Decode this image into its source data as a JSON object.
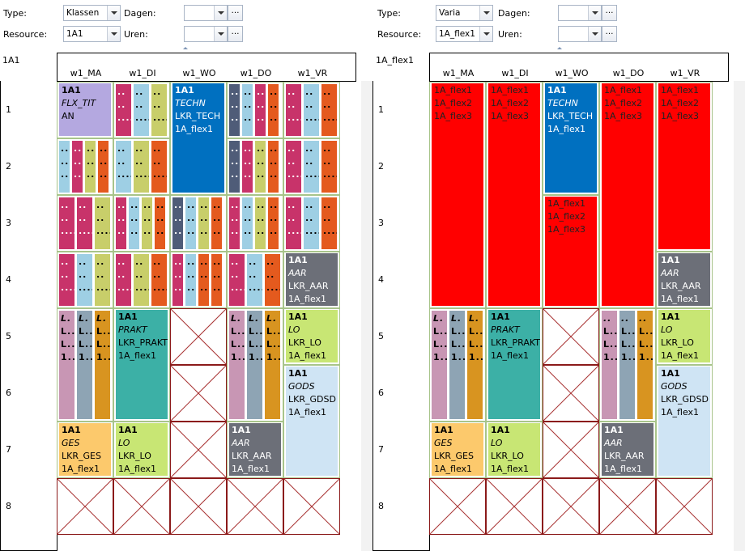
{
  "ui": {
    "dropdown_icon": "chevron-down-icon",
    "ellipsis": "…"
  },
  "panels": [
    {
      "filters": {
        "type_label": "Type:",
        "type_value": "Klassen",
        "dagen_label": "Dagen:",
        "dagen_value": "",
        "resource_label": "Resource:",
        "resource_value": "1A1",
        "uren_label": "Uren:",
        "uren_value": ""
      },
      "resource_title": "1A1",
      "days": [
        "w1_MA",
        "w1_DI",
        "w1_WO",
        "w1_DO",
        "w1_VR"
      ],
      "hours": [
        "1",
        "2",
        "3",
        "4",
        "5",
        "6",
        "7",
        "8"
      ],
      "lessons": [
        {
          "day": 0,
          "start": 0,
          "span": 1,
          "color": "#b4a8e0",
          "lines": [
            "1A1",
            "FLX_TIT",
            "AN"
          ],
          "italic_lines": [
            1
          ]
        },
        {
          "day": 2,
          "start": 0,
          "span": 2,
          "color": "#0070c0",
          "lines": [
            "1A1",
            "TECHN",
            "LKR_TECH",
            "1A_flex1"
          ],
          "italic_lines": [
            1
          ]
        },
        {
          "day": 4,
          "start": 3,
          "span": 1,
          "color": "#6c6f78",
          "lines": [
            "1A1",
            "AAR",
            "LKR_AAR",
            "1A_flex1"
          ],
          "italic_lines": [
            1
          ]
        },
        {
          "day": 1,
          "start": 4,
          "span": 2,
          "color": "#3cb0a6",
          "lines": [
            "1A1",
            "PRAKT",
            "LKR_PRAKT",
            "1A_flex1"
          ],
          "italic_lines": [
            1
          ]
        },
        {
          "day": 4,
          "start": 4,
          "span": 1,
          "color": "#c8e674",
          "lines": [
            "1A1",
            "LO",
            "LKR_LO",
            "1A_flex1"
          ],
          "italic_lines": [
            1
          ]
        },
        {
          "day": 4,
          "start": 5,
          "span": 2,
          "color": "#cfe4f4",
          "lines": [
            "1A1",
            "GODS",
            "LKR_GDSD",
            "1A_flex1"
          ],
          "italic_lines": [
            1
          ]
        },
        {
          "day": 0,
          "start": 6,
          "span": 1,
          "color": "#fcc96c",
          "lines": [
            "1A1",
            "GES",
            "LKR_GES",
            "1A_flex1"
          ],
          "italic_lines": [
            1
          ]
        },
        {
          "day": 1,
          "start": 6,
          "span": 1,
          "color": "#c8e674",
          "lines": [
            "1A1",
            "LO",
            "LKR_LO",
            "1A_flex1"
          ],
          "italic_lines": [
            1
          ]
        },
        {
          "day": 3,
          "start": 6,
          "span": 1,
          "color": "#6c6f78",
          "lines": [
            "1A1",
            "AAR",
            "LKR_AAR",
            "1A_flex1"
          ],
          "italic_lines": [
            1
          ]
        }
      ],
      "narrow_groups": [
        {
          "day": 1,
          "start": 0,
          "span": 1,
          "colors": [
            "#c8336a",
            "#9ecfe4",
            "#c8ce6a"
          ]
        },
        {
          "day": 3,
          "start": 0,
          "span": 1,
          "colors": [
            "#4f5c78",
            "#9ecfe4",
            "#c8336a",
            "#e45a1e"
          ]
        },
        {
          "day": 4,
          "start": 0,
          "span": 1,
          "colors": [
            "#c8336a",
            "#9ecfe4",
            "#e45a1e"
          ]
        },
        {
          "day": 0,
          "start": 1,
          "span": 1,
          "colors": [
            "#9ecfe4",
            "#c8336a",
            "#c8ce6a",
            "#e45a1e"
          ]
        },
        {
          "day": 1,
          "start": 1,
          "span": 1,
          "colors": [
            "#9ecfe4",
            "#c8ce6a",
            "#e45a1e"
          ]
        },
        {
          "day": 3,
          "start": 1,
          "span": 1,
          "colors": [
            "#4f5c78",
            "#c8336a",
            "#c8ce6a",
            "#e45a1e"
          ]
        },
        {
          "day": 4,
          "start": 1,
          "span": 1,
          "colors": [
            "#c8336a",
            "#9ecfe4",
            "#e45a1e"
          ]
        },
        {
          "day": 0,
          "start": 2,
          "span": 1,
          "colors": [
            "#c8336a",
            "#c8336a",
            "#c8ce6a"
          ]
        },
        {
          "day": 1,
          "start": 2,
          "span": 1,
          "colors": [
            "#c8336a",
            "#9ecfe4",
            "#c8ce6a",
            "#e45a1e"
          ]
        },
        {
          "day": 2,
          "start": 2,
          "span": 1,
          "colors": [
            "#4f5c78",
            "#9ecfe4",
            "#c8ce6a",
            "#e45a1e"
          ]
        },
        {
          "day": 3,
          "start": 2,
          "span": 1,
          "colors": [
            "#c8336a",
            "#9ecfe4",
            "#c8ce6a",
            "#e45a1e"
          ]
        },
        {
          "day": 4,
          "start": 2,
          "span": 1,
          "colors": [
            "#c8336a",
            "#9ecfe4",
            "#e45a1e"
          ]
        },
        {
          "day": 0,
          "start": 3,
          "span": 1,
          "colors": [
            "#c8336a",
            "#9ecfe4",
            "#c8ce6a"
          ]
        },
        {
          "day": 1,
          "start": 3,
          "span": 1,
          "colors": [
            "#c8336a",
            "#c8ce6a",
            "#e45a1e"
          ]
        },
        {
          "day": 2,
          "start": 3,
          "span": 1,
          "colors": [
            "#c8336a",
            "#9ecfe4",
            "#e45a1e",
            "#e45a1e"
          ]
        },
        {
          "day": 3,
          "start": 3,
          "span": 1,
          "colors": [
            "#c8336a",
            "#9ecfe4",
            "#e45a1e"
          ]
        },
        {
          "day": 0,
          "start": 4,
          "span": 2,
          "colors": [
            "#c896b4",
            "#8ea4b4",
            "#d89420"
          ],
          "text": [
            "L.",
            "L..",
            "L..",
            "1.."
          ]
        },
        {
          "day": 3,
          "start": 4,
          "span": 2,
          "colors": [
            "#c896b4",
            "#8ea4b4",
            "#d89420"
          ],
          "text": [
            "L.",
            "L..",
            "L..",
            "1.."
          ]
        }
      ],
      "empty_cells": [
        {
          "day": 2,
          "start": 4,
          "span": 1
        },
        {
          "day": 2,
          "start": 5,
          "span": 1
        },
        {
          "day": 2,
          "start": 6,
          "span": 1
        },
        {
          "day": 0,
          "start": 7,
          "span": 1
        },
        {
          "day": 1,
          "start": 7,
          "span": 1
        },
        {
          "day": 2,
          "start": 7,
          "span": 1
        },
        {
          "day": 3,
          "start": 7,
          "span": 1
        },
        {
          "day": 4,
          "start": 7,
          "span": 1
        }
      ]
    },
    {
      "filters": {
        "type_label": "Type:",
        "type_value": "Varia",
        "dagen_label": "Dagen:",
        "dagen_value": "",
        "resource_label": "Resource:",
        "resource_value": "1A_flex1",
        "uren_label": "Uren:",
        "uren_value": ""
      },
      "resource_title": "1A_flex1",
      "days": [
        "w1_MA",
        "w1_DI",
        "w1_WO",
        "w1_DO",
        "w1_VR"
      ],
      "hours": [
        "1",
        "2",
        "3",
        "4",
        "5",
        "6",
        "7",
        "8"
      ],
      "lessons": [
        {
          "day": 0,
          "start": 0,
          "span": 4,
          "color": "#ff0000",
          "lines": [
            "1A_flex1",
            "1A_flex2",
            "1A_flex3"
          ],
          "italic_lines": []
        },
        {
          "day": 1,
          "start": 0,
          "span": 4,
          "color": "#ff0000",
          "lines": [
            "1A_flex1",
            "1A_flex2",
            "1A_flex3"
          ],
          "italic_lines": []
        },
        {
          "day": 2,
          "start": 0,
          "span": 2,
          "color": "#0070c0",
          "lines": [
            "1A1",
            "TECHN",
            "LKR_TECH",
            "1A_flex1"
          ],
          "italic_lines": [
            1
          ]
        },
        {
          "day": 2,
          "start": 2,
          "span": 2,
          "color": "#ff0000",
          "lines": [
            "1A_flex1",
            "1A_flex2",
            "1A_flex3"
          ],
          "italic_lines": []
        },
        {
          "day": 3,
          "start": 0,
          "span": 4,
          "color": "#ff0000",
          "lines": [
            "1A_flex1",
            "1A_flex2",
            "1A_flex3"
          ],
          "italic_lines": []
        },
        {
          "day": 4,
          "start": 0,
          "span": 3,
          "color": "#ff0000",
          "lines": [
            "1A_flex1",
            "1A_flex2",
            "1A_flex3"
          ],
          "italic_lines": []
        },
        {
          "day": 4,
          "start": 3,
          "span": 1,
          "color": "#6c6f78",
          "lines": [
            "1A1",
            "AAR",
            "LKR_AAR",
            "1A_flex1"
          ],
          "italic_lines": [
            1
          ]
        },
        {
          "day": 1,
          "start": 4,
          "span": 2,
          "color": "#3cb0a6",
          "lines": [
            "1A1",
            "PRAKT",
            "LKR_PRAKT",
            "1A_flex1"
          ],
          "italic_lines": [
            1
          ]
        },
        {
          "day": 4,
          "start": 4,
          "span": 1,
          "color": "#c8e674",
          "lines": [
            "1A1",
            "LO",
            "LKR_LO",
            "1A_flex1"
          ],
          "italic_lines": [
            1
          ]
        },
        {
          "day": 4,
          "start": 5,
          "span": 2,
          "color": "#cfe4f4",
          "lines": [
            "1A1",
            "GODS",
            "LKR_GDSD",
            "1A_flex1"
          ],
          "italic_lines": [
            1
          ]
        },
        {
          "day": 0,
          "start": 6,
          "span": 1,
          "color": "#fcc96c",
          "lines": [
            "1A1",
            "GES",
            "LKR_GES",
            "1A_flex1"
          ],
          "italic_lines": [
            1
          ]
        },
        {
          "day": 1,
          "start": 6,
          "span": 1,
          "color": "#c8e674",
          "lines": [
            "1A1",
            "LO",
            "LKR_LO",
            "1A_flex1"
          ],
          "italic_lines": [
            1
          ]
        },
        {
          "day": 3,
          "start": 6,
          "span": 1,
          "color": "#6c6f78",
          "lines": [
            "1A1",
            "AAR",
            "LKR_AAR",
            "1A_flex1"
          ],
          "italic_lines": [
            1
          ]
        }
      ],
      "narrow_groups": [
        {
          "day": 0,
          "start": 4,
          "span": 2,
          "colors": [
            "#c896b4",
            "#8ea4b4",
            "#d89420"
          ],
          "text": [
            "L.",
            "L..",
            "L..",
            "1.."
          ]
        },
        {
          "day": 3,
          "start": 4,
          "span": 2,
          "colors": [
            "#c896b4",
            "#8ea4b4",
            "#d89420"
          ],
          "text": [
            "..",
            "L..",
            "L..",
            "1.."
          ]
        }
      ],
      "empty_cells": [
        {
          "day": 2,
          "start": 4,
          "span": 1
        },
        {
          "day": 2,
          "start": 5,
          "span": 1
        },
        {
          "day": 2,
          "start": 6,
          "span": 1
        },
        {
          "day": 0,
          "start": 7,
          "span": 1
        },
        {
          "day": 1,
          "start": 7,
          "span": 1
        },
        {
          "day": 2,
          "start": 7,
          "span": 1
        },
        {
          "day": 3,
          "start": 7,
          "span": 1
        },
        {
          "day": 4,
          "start": 7,
          "span": 1
        }
      ]
    }
  ]
}
